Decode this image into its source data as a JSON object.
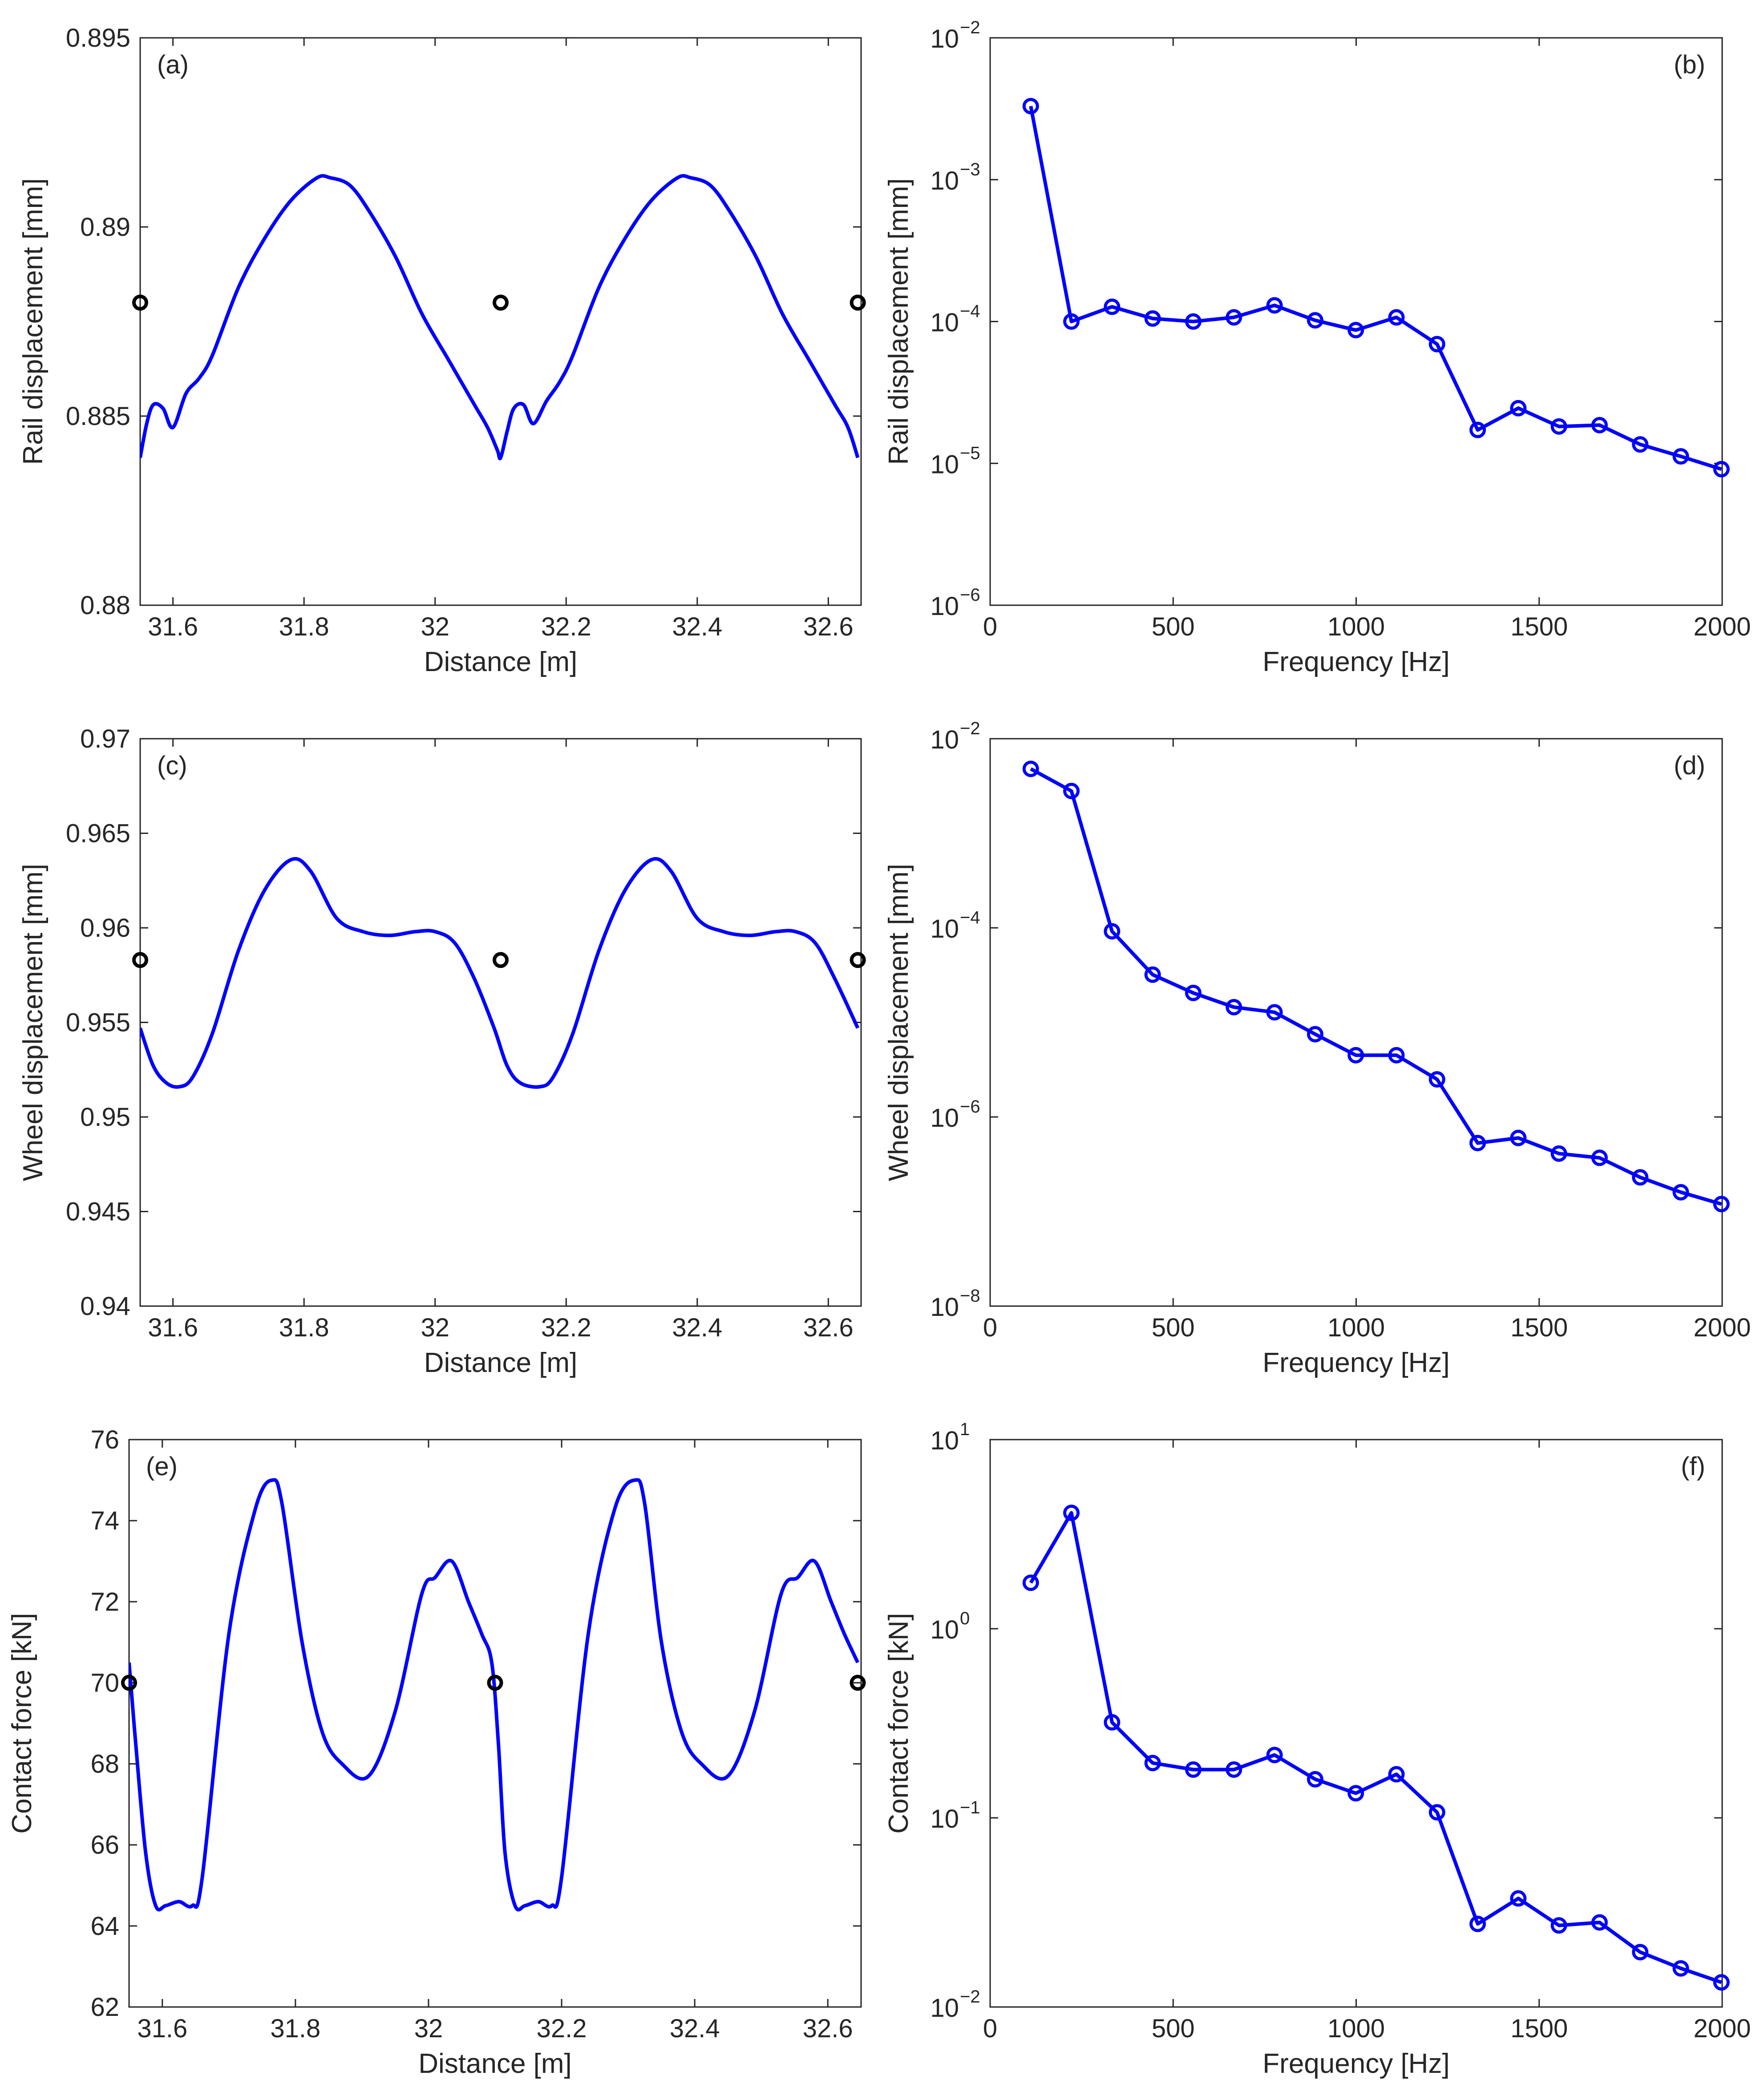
{
  "figure": {
    "series_color": "#0000ff",
    "marker_color": "#000000"
  },
  "chart_data": [
    {
      "id": "a",
      "panel_label": "(a)",
      "type": "line",
      "yscale": "linear",
      "xlabel": "Distance [m]",
      "ylabel": "Rail displacement [mm]",
      "xlim": [
        31.55,
        32.65
      ],
      "ylim": [
        0.88,
        0.895
      ],
      "xticks": [
        31.6,
        31.8,
        32,
        32.2,
        32.4,
        32.6
      ],
      "xtick_labels": [
        "31.6",
        "31.8",
        "32",
        "32.2",
        "32.4",
        "32.6"
      ],
      "yticks": [
        0.88,
        0.885,
        0.89,
        0.895
      ],
      "ytick_labels": [
        "0.88",
        "0.885",
        "0.89",
        "0.895"
      ],
      "series": [
        {
          "name": "Rail displacement",
          "color": "#0000ff",
          "x": [
            31.55,
            31.56,
            31.57,
            31.585,
            31.6,
            31.62,
            31.64,
            31.66,
            31.7,
            31.74,
            31.78,
            31.82,
            31.84,
            31.87,
            31.9,
            31.94,
            31.98,
            32.02,
            32.06,
            32.08,
            32.095,
            32.1,
            32.11,
            32.12,
            32.135,
            32.15,
            32.17,
            32.19,
            32.21,
            32.25,
            32.29,
            32.33,
            32.37,
            32.39,
            32.42,
            32.45,
            32.49,
            32.53,
            32.57,
            32.61,
            32.63,
            32.645
          ],
          "y": [
            0.8839,
            0.8848,
            0.8853,
            0.8852,
            0.8847,
            0.8856,
            0.886,
            0.8866,
            0.8884,
            0.8897,
            0.8907,
            0.8913,
            0.8913,
            0.8911,
            0.8904,
            0.8892,
            0.8877,
            0.8865,
            0.8853,
            0.8847,
            0.8841,
            0.8839,
            0.8846,
            0.8852,
            0.8853,
            0.8848,
            0.8854,
            0.8859,
            0.8866,
            0.8884,
            0.8897,
            0.8907,
            0.8913,
            0.8913,
            0.8911,
            0.8904,
            0.8892,
            0.8877,
            0.8865,
            0.8853,
            0.8847,
            0.8839
          ]
        }
      ],
      "markers": {
        "x": [
          31.55,
          32.1,
          32.645
        ],
        "y": [
          0.888,
          0.888,
          0.888
        ]
      }
    },
    {
      "id": "b",
      "panel_label": "(b)",
      "type": "line",
      "yscale": "log",
      "xlabel": "Frequency [Hz]",
      "ylabel": "Rail displacement [mm]",
      "xlim": [
        0,
        2000
      ],
      "ylim": [
        1e-06,
        0.01
      ],
      "xticks": [
        0,
        500,
        1000,
        1500,
        2000
      ],
      "xtick_labels": [
        "0",
        "500",
        "1000",
        "1500",
        "2000"
      ],
      "yticks": [
        1e-06,
        1e-05,
        0.0001,
        0.001,
        0.01
      ],
      "ytick_base": "10",
      "ytick_exponents": [
        "−6",
        "−5",
        "−4",
        "−3",
        "−2"
      ],
      "series": [
        {
          "name": "Rail displacement spectrum",
          "color": "#0000ff",
          "x": [
            111,
            222,
            333,
            444,
            555,
            666,
            777,
            888,
            999,
            1110,
            1221,
            1332,
            1443,
            1554,
            1665,
            1776,
            1887,
            1998
          ],
          "y": [
            0.0033,
            0.0001,
            0.000127,
            0.000105,
            0.0001,
            0.000107,
            0.00013,
            0.000102,
            8.7e-05,
            0.000107,
            6.93e-05,
            1.72e-05,
            2.45e-05,
            1.82e-05,
            1.86e-05,
            1.36e-05,
            1.12e-05,
            9.1e-06
          ]
        }
      ]
    },
    {
      "id": "c",
      "panel_label": "(c)",
      "type": "line",
      "yscale": "linear",
      "xlabel": "Distance [m]",
      "ylabel": "Wheel displacement [mm]",
      "xlim": [
        31.55,
        32.65
      ],
      "ylim": [
        0.94,
        0.97
      ],
      "xticks": [
        31.6,
        31.8,
        32,
        32.2,
        32.4,
        32.6
      ],
      "xtick_labels": [
        "31.6",
        "31.8",
        "32",
        "32.2",
        "32.4",
        "32.6"
      ],
      "yticks": [
        0.94,
        0.945,
        0.95,
        0.955,
        0.96,
        0.965,
        0.97
      ],
      "ytick_labels": [
        "0.94",
        "0.945",
        "0.95",
        "0.955",
        "0.96",
        "0.965",
        "0.97"
      ],
      "series": [
        {
          "name": "Wheel displacement",
          "color": "#0000ff",
          "x": [
            31.55,
            31.57,
            31.59,
            31.61,
            31.63,
            31.66,
            31.7,
            31.74,
            31.78,
            31.81,
            31.85,
            31.89,
            31.93,
            31.97,
            32.0,
            32.03,
            32.06,
            32.09,
            32.11,
            32.13,
            32.16,
            32.18,
            32.21,
            32.25,
            32.29,
            32.33,
            32.36,
            32.4,
            32.44,
            32.48,
            32.52,
            32.55,
            32.58,
            32.61,
            32.645
          ],
          "y": [
            0.9547,
            0.9527,
            0.9518,
            0.9516,
            0.9521,
            0.9544,
            0.9588,
            0.962,
            0.9636,
            0.963,
            0.9605,
            0.9598,
            0.9596,
            0.9598,
            0.9598,
            0.9592,
            0.9573,
            0.9547,
            0.9527,
            0.9518,
            0.9516,
            0.9521,
            0.9544,
            0.9588,
            0.962,
            0.9636,
            0.963,
            0.9605,
            0.9598,
            0.9596,
            0.9598,
            0.9598,
            0.9592,
            0.9573,
            0.9547
          ]
        }
      ],
      "markers": {
        "x": [
          31.55,
          32.1,
          32.645
        ],
        "y": [
          0.9583,
          0.9583,
          0.9583
        ]
      }
    },
    {
      "id": "d",
      "panel_label": "(d)",
      "type": "line",
      "yscale": "log",
      "xlabel": "Frequency [Hz]",
      "ylabel": "Wheel displacement [mm]",
      "xlim": [
        0,
        2000
      ],
      "ylim": [
        1e-08,
        0.01
      ],
      "xticks": [
        0,
        500,
        1000,
        1500,
        2000
      ],
      "xtick_labels": [
        "0",
        "500",
        "1000",
        "1500",
        "2000"
      ],
      "yticks": [
        1e-08,
        1e-06,
        0.0001,
        0.01
      ],
      "ytick_base": "10",
      "ytick_exponents": [
        "−8",
        "−6",
        "−4",
        "−2"
      ],
      "series": [
        {
          "name": "Wheel displacement spectrum",
          "color": "#0000ff",
          "x": [
            111,
            222,
            333,
            444,
            555,
            666,
            777,
            888,
            999,
            1110,
            1221,
            1332,
            1443,
            1554,
            1665,
            1776,
            1887,
            1998
          ],
          "y": [
            0.0048,
            0.0028,
            9.2e-05,
            3.2e-05,
            2.05e-05,
            1.45e-05,
            1.28e-05,
            7.5e-06,
            4.5e-06,
            4.5e-06,
            2.5e-06,
            5.3e-07,
            6e-07,
            4.1e-07,
            3.7e-07,
            2.3e-07,
            1.6e-07,
            1.2e-07
          ]
        }
      ]
    },
    {
      "id": "e",
      "panel_label": "(e)",
      "type": "line",
      "yscale": "linear",
      "xlabel": "Distance [m]",
      "ylabel": "Contact force [kN]",
      "xlim": [
        31.55,
        32.65
      ],
      "ylim": [
        62,
        76
      ],
      "xticks": [
        31.6,
        31.8,
        32,
        32.2,
        32.4,
        32.6
      ],
      "xtick_labels": [
        "31.6",
        "31.8",
        "32",
        "32.2",
        "32.4",
        "32.6"
      ],
      "yticks": [
        62,
        64,
        66,
        68,
        70,
        72,
        74,
        76
      ],
      "ytick_labels": [
        "62",
        "64",
        "66",
        "68",
        "70",
        "72",
        "74",
        "76"
      ],
      "series": [
        {
          "name": "Contact force",
          "color": "#0000ff",
          "x": [
            31.55,
            31.56,
            31.575,
            31.59,
            31.605,
            31.625,
            31.645,
            31.66,
            31.7,
            31.74,
            31.765,
            31.78,
            31.81,
            31.84,
            31.87,
            31.91,
            31.95,
            31.99,
            32.01,
            32.035,
            32.06,
            32.08,
            32.095,
            32.105,
            32.115,
            32.13,
            32.145,
            32.165,
            32.185,
            32.2,
            32.24,
            32.28,
            32.31,
            32.325,
            32.35,
            32.38,
            32.41,
            32.45,
            32.49,
            32.53,
            32.555,
            32.58,
            32.605,
            32.625,
            32.645
          ],
          "y": [
            70.5,
            68.5,
            65.8,
            64.5,
            64.5,
            64.6,
            64.5,
            65.2,
            71.2,
            74.3,
            75.0,
            74.4,
            71.0,
            68.8,
            68.0,
            67.7,
            69.3,
            72.2,
            72.6,
            73.0,
            72.0,
            71.2,
            70.5,
            68.5,
            65.8,
            64.5,
            64.5,
            64.6,
            64.5,
            65.2,
            71.2,
            74.3,
            75.0,
            74.4,
            71.0,
            68.8,
            68.0,
            67.7,
            69.3,
            72.2,
            72.6,
            73.0,
            72.0,
            71.2,
            70.5
          ]
        }
      ],
      "markers": {
        "x": [
          31.55,
          32.1,
          32.645
        ],
        "y": [
          70.0,
          70.0,
          70.0
        ]
      }
    },
    {
      "id": "f",
      "panel_label": "(f)",
      "type": "line",
      "yscale": "log",
      "xlabel": "Frequency [Hz]",
      "ylabel": "Contact force [kN]",
      "xlim": [
        0,
        2000
      ],
      "ylim": [
        0.01,
        10
      ],
      "xticks": [
        0,
        500,
        1000,
        1500,
        2000
      ],
      "xtick_labels": [
        "0",
        "500",
        "1000",
        "1500",
        "2000"
      ],
      "yticks": [
        0.01,
        0.1,
        1,
        10
      ],
      "ytick_base": "10",
      "ytick_exponents": [
        "−2",
        "−1",
        "0",
        "1"
      ],
      "series": [
        {
          "name": "Contact force spectrum",
          "color": "#0000ff",
          "x": [
            111,
            222,
            333,
            444,
            555,
            666,
            777,
            888,
            999,
            1110,
            1221,
            1332,
            1443,
            1554,
            1665,
            1776,
            1887,
            1998
          ],
          "y": [
            1.75,
            4.1,
            0.32,
            0.195,
            0.18,
            0.18,
            0.215,
            0.16,
            0.135,
            0.17,
            0.107,
            0.0275,
            0.0375,
            0.027,
            0.028,
            0.0195,
            0.016,
            0.0135
          ]
        }
      ]
    }
  ]
}
